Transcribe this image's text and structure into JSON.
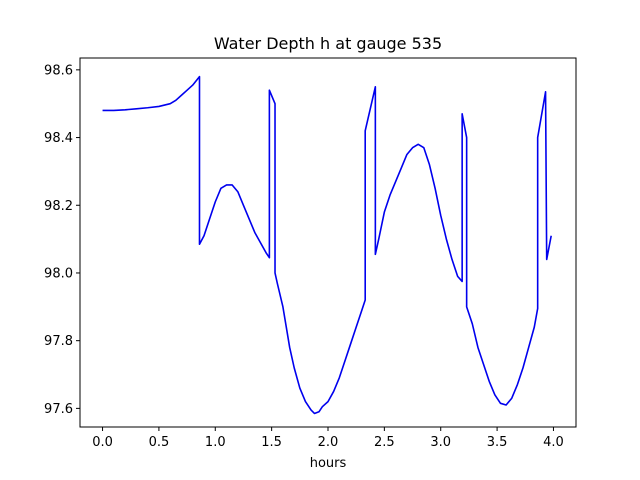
{
  "chart_data": {
    "type": "line",
    "title": "Water Depth h at gauge 535",
    "xlabel": "hours",
    "ylabel": "",
    "xlim": [
      -0.2,
      4.2
    ],
    "ylim": [
      97.545,
      98.635
    ],
    "xticks": [
      0.0,
      0.5,
      1.0,
      1.5,
      2.0,
      2.5,
      3.0,
      3.5,
      4.0
    ],
    "xtick_labels": [
      "0.0",
      "0.5",
      "1.0",
      "1.5",
      "2.0",
      "2.5",
      "3.0",
      "3.5",
      "4.0"
    ],
    "yticks": [
      97.6,
      97.8,
      98.0,
      98.2,
      98.4,
      98.6
    ],
    "ytick_labels": [
      "97.6",
      "97.8",
      "98.0",
      "98.2",
      "98.4",
      "98.6"
    ],
    "grid": false,
    "legend": "none",
    "series": [
      {
        "color": "#0000ee",
        "x": [
          0.0,
          0.1,
          0.2,
          0.3,
          0.4,
          0.5,
          0.6,
          0.65,
          0.7,
          0.75,
          0.8,
          0.86,
          0.86,
          0.9,
          0.95,
          1.0,
          1.05,
          1.1,
          1.15,
          1.2,
          1.25,
          1.3,
          1.35,
          1.4,
          1.45,
          1.48,
          1.48,
          1.53,
          1.53,
          1.55,
          1.6,
          1.63,
          1.66,
          1.7,
          1.75,
          1.8,
          1.85,
          1.88,
          1.92,
          1.95,
          2.0,
          2.05,
          2.1,
          2.15,
          2.2,
          2.25,
          2.3,
          2.33,
          2.33,
          2.42,
          2.42,
          2.45,
          2.5,
          2.55,
          2.6,
          2.65,
          2.7,
          2.75,
          2.8,
          2.85,
          2.9,
          2.95,
          3.0,
          3.05,
          3.1,
          3.15,
          3.19,
          3.19,
          3.23,
          3.23,
          3.28,
          3.33,
          3.38,
          3.43,
          3.48,
          3.53,
          3.58,
          3.63,
          3.68,
          3.73,
          3.78,
          3.83,
          3.86,
          3.86,
          3.93,
          3.94,
          3.98
        ],
        "y": [
          98.48,
          98.48,
          98.482,
          98.485,
          98.488,
          98.492,
          98.5,
          98.51,
          98.525,
          98.54,
          98.555,
          98.58,
          98.085,
          98.11,
          98.16,
          98.21,
          98.25,
          98.26,
          98.26,
          98.24,
          98.2,
          98.16,
          98.12,
          98.09,
          98.06,
          98.045,
          98.54,
          98.5,
          98.0,
          97.97,
          97.9,
          97.84,
          97.78,
          97.72,
          97.66,
          97.62,
          97.595,
          97.585,
          97.59,
          97.605,
          97.62,
          97.65,
          97.69,
          97.74,
          97.79,
          97.84,
          97.89,
          97.92,
          98.42,
          98.55,
          98.055,
          98.1,
          98.18,
          98.23,
          98.27,
          98.31,
          98.35,
          98.37,
          98.38,
          98.37,
          98.32,
          98.25,
          98.17,
          98.1,
          98.04,
          97.99,
          97.975,
          98.47,
          98.4,
          97.9,
          97.85,
          97.78,
          97.73,
          97.68,
          97.64,
          97.615,
          97.61,
          97.63,
          97.67,
          97.72,
          97.78,
          97.84,
          97.895,
          98.4,
          98.535,
          98.04,
          98.11
        ]
      }
    ]
  }
}
